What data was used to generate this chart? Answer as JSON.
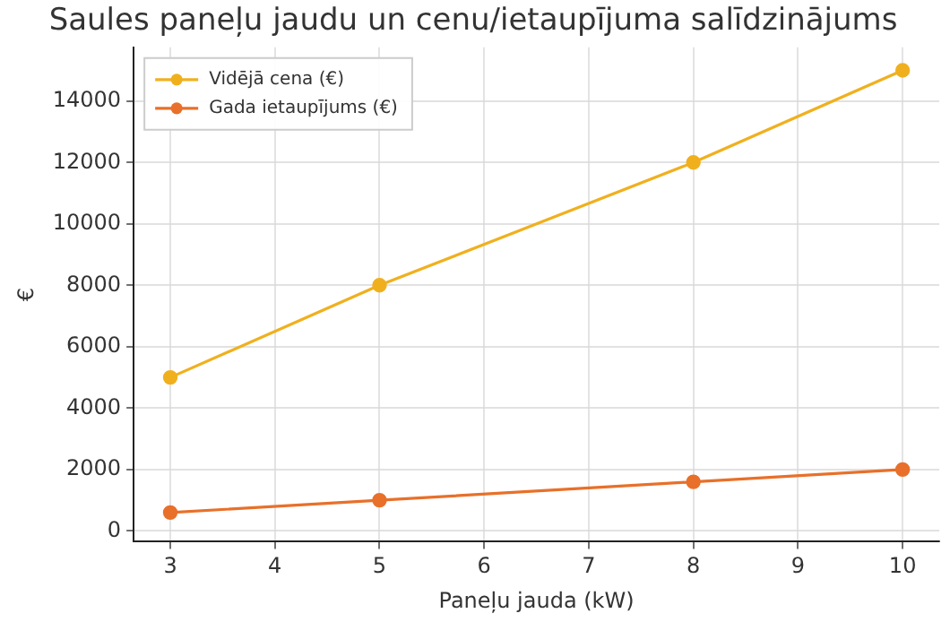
{
  "chart_data": {
    "type": "line",
    "title": "Saules paneļu jaudu un cenu/ietaupījuma salīdzinājums",
    "xlabel": "Paneļu jauda (kW)",
    "ylabel": "€",
    "x": [
      3,
      5,
      8,
      10
    ],
    "series": [
      {
        "name": "Vidējā cena (€)",
        "color": "#f0b01e",
        "values": [
          5000,
          8000,
          12000,
          15000
        ]
      },
      {
        "name": "Gada ietaupījums (€)",
        "color": "#e8702a",
        "values": [
          600,
          1000,
          1600,
          2000
        ]
      }
    ],
    "xlim": [
      2.65,
      10.35
    ],
    "xticks": [
      3,
      4,
      5,
      6,
      7,
      8,
      9,
      10
    ],
    "ylim": [
      -350,
      15750
    ],
    "yticks": [
      0,
      2000,
      4000,
      6000,
      8000,
      10000,
      12000,
      14000
    ],
    "grid": true,
    "legend": "top left",
    "marker": "circle",
    "line_style": "solid"
  }
}
